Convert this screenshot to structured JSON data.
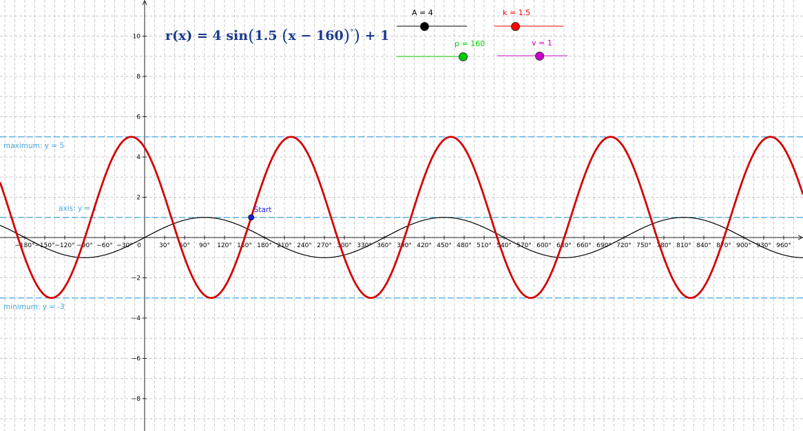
{
  "formula": {
    "name": "r(x)",
    "eq": "=",
    "amp": "4",
    "fn": "sin",
    "k": "1.5",
    "xvar": "x",
    "minus": "−",
    "p": "160",
    "degree": "°",
    "plus": "+",
    "v": "1"
  },
  "sliders": [
    {
      "id": "A",
      "label": "A = 4",
      "color": "#000000",
      "track_color": "#808080",
      "value": 4,
      "min": 0,
      "max": 10
    },
    {
      "id": "k",
      "label": "k = 1.5",
      "color": "#ff0000",
      "track_color": "#ff8080",
      "value": 1.5,
      "min": 0,
      "max": 5
    },
    {
      "id": "p",
      "label": "p = 160",
      "color": "#00cc00",
      "track_color": "#80e080",
      "value": 160,
      "min": -180,
      "max": 180
    },
    {
      "id": "v",
      "label": "v = 1",
      "color": "#cc00cc",
      "track_color": "#e080e0",
      "value": 1,
      "min": -5,
      "max": 5
    }
  ],
  "chart_data": {
    "type": "line",
    "x_unit": "degrees",
    "xlim": [
      -205,
      965
    ],
    "ylim": [
      -9.2,
      12.1
    ],
    "grid": true,
    "x_ticks": [
      "−180°",
      "−150°",
      "−120°",
      "−90°",
      "−60°",
      "−30°",
      "0",
      "30°",
      "60°",
      "90°",
      "120°",
      "150°",
      "180°",
      "210°",
      "240°",
      "270°",
      "300°",
      "330°",
      "360°",
      "390°",
      "420°",
      "450°",
      "480°",
      "510°",
      "540°",
      "570°",
      "600°",
      "630°",
      "660°",
      "690°",
      "720°",
      "750°",
      "780°",
      "810°",
      "840°",
      "870°",
      "900°",
      "930°",
      "960°"
    ],
    "y_ticks": [
      "−8",
      "−6",
      "−4",
      "−2",
      "2",
      "4",
      "6",
      "8",
      "10"
    ],
    "series": [
      {
        "function": "r(x) = 4 sin(1.5 (x − 160)°) + 1",
        "amplitude": 4,
        "k": 1.5,
        "phase_shift": 160,
        "vertical_shift": 1,
        "color": "#d40000"
      },
      {
        "function": "sin(x°)",
        "amplitude": 1,
        "k": 1,
        "phase_shift": 0,
        "vertical_shift": 0,
        "color": "#000000"
      }
    ],
    "reference_lines": [
      {
        "label": "maximum: y = 5",
        "y": 5,
        "color": "#44a8e0"
      },
      {
        "label": "axis: y = 1",
        "y": 1,
        "color": "#44a8e0"
      },
      {
        "label": "minimum: y = -3",
        "y": -3,
        "color": "#44a8e0"
      }
    ],
    "point": {
      "label": "Start",
      "x": 160,
      "y": 1,
      "color": "#1d1dd6"
    }
  }
}
